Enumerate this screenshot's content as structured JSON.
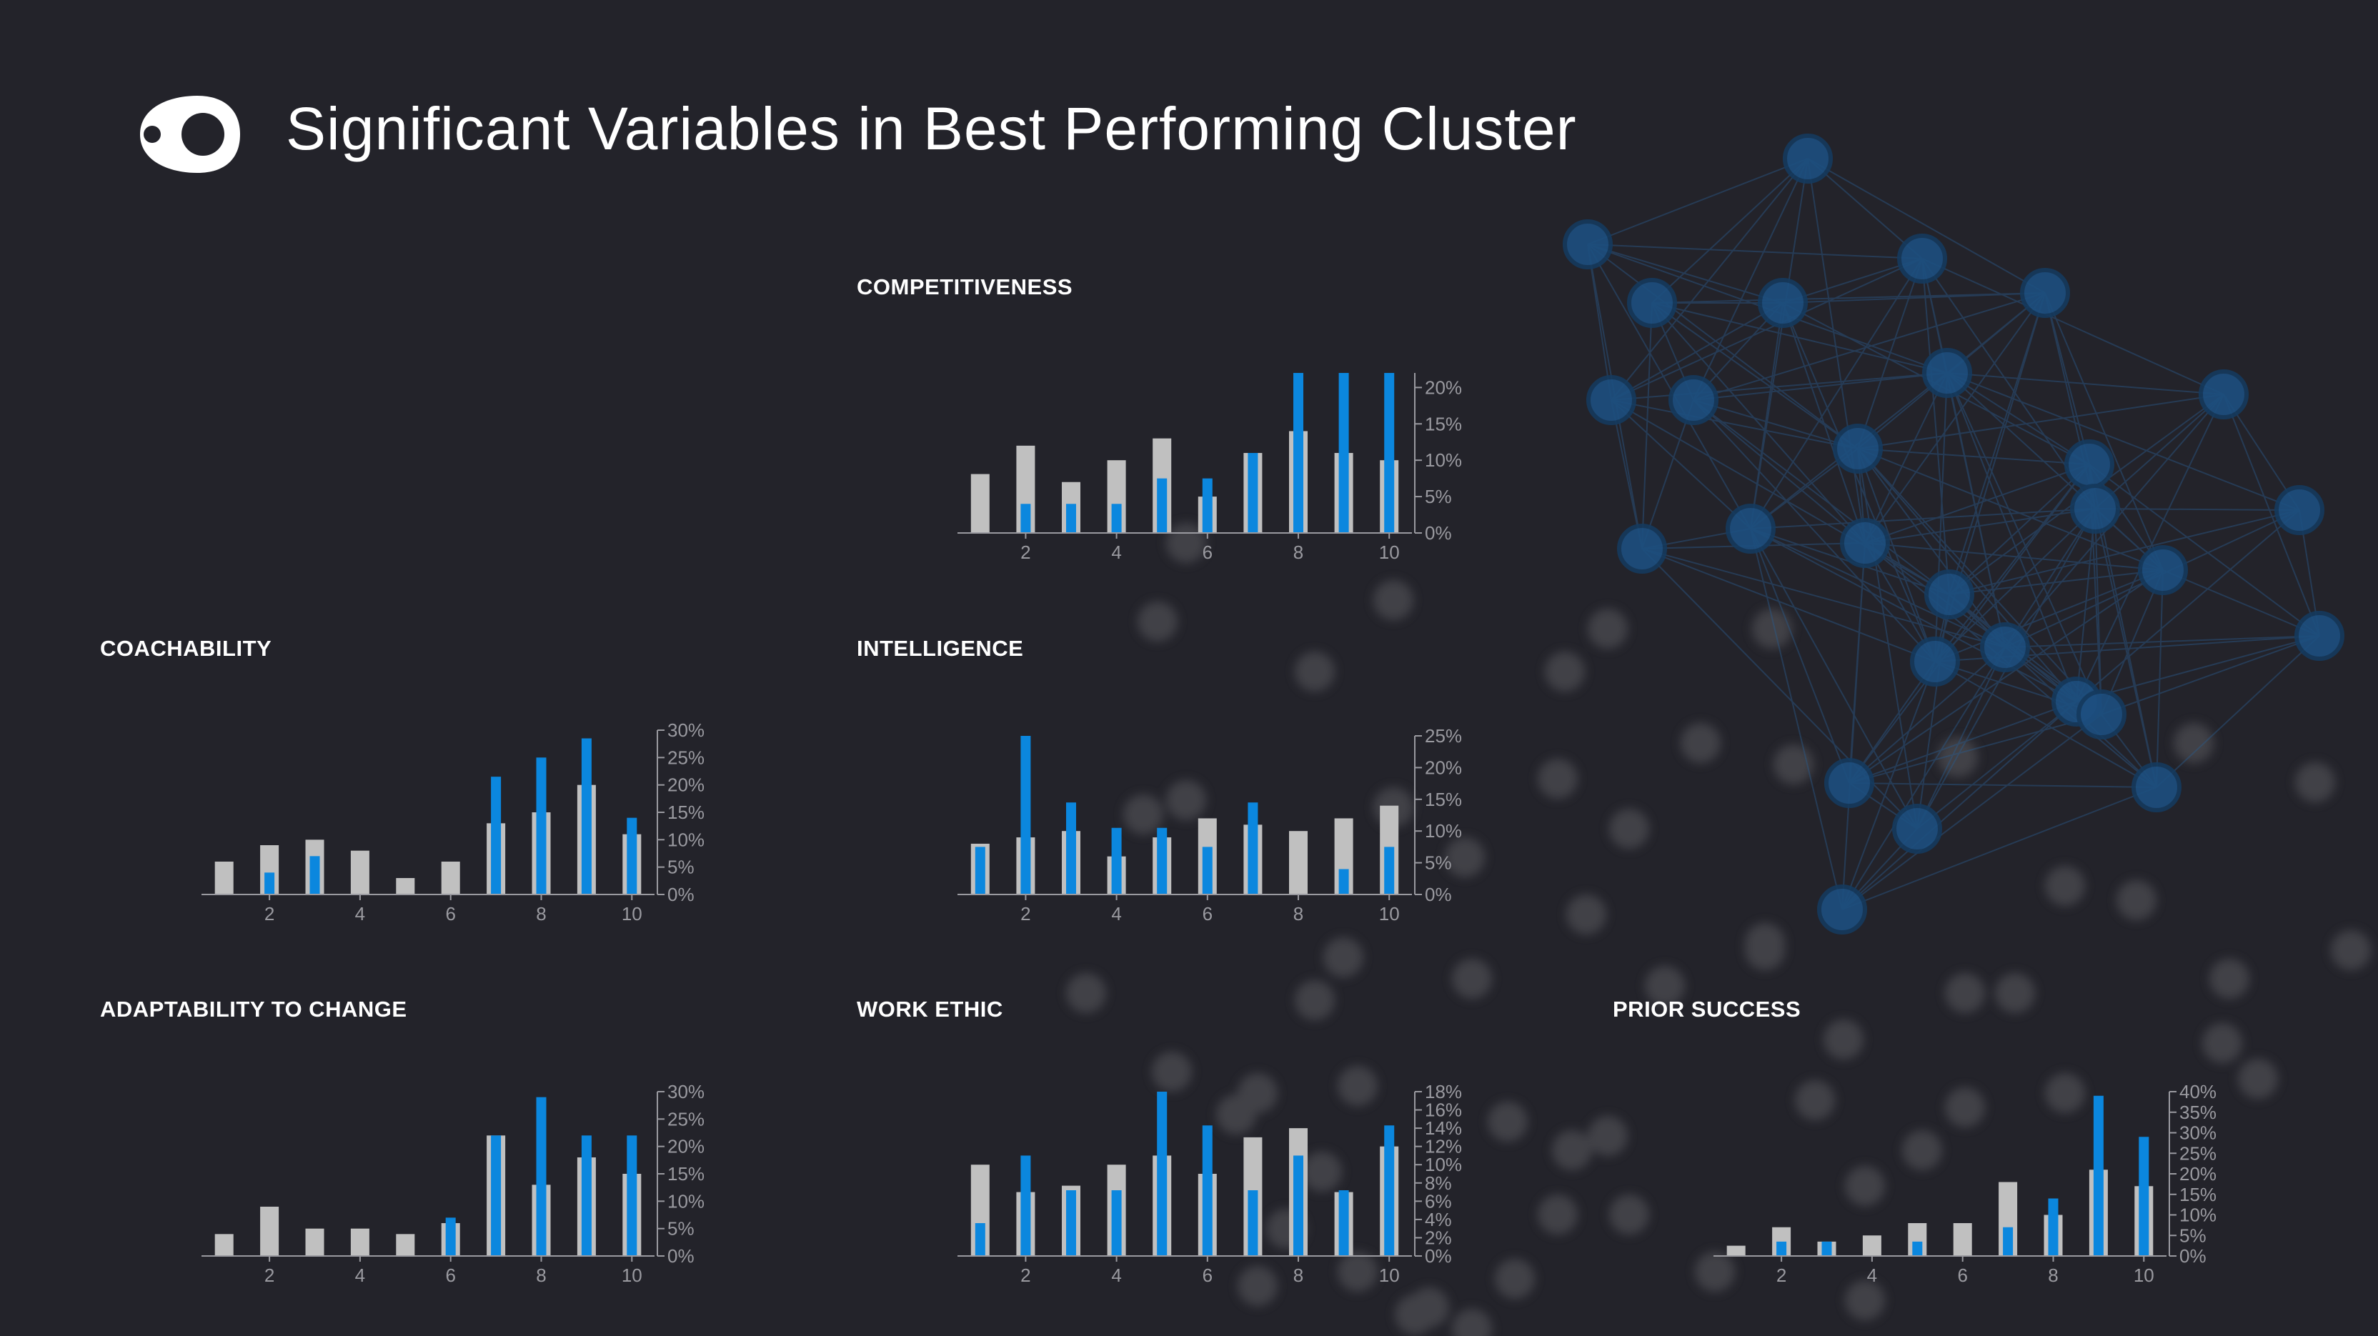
{
  "page": {
    "title": "Significant Variables in Best Performing Cluster"
  },
  "colors": {
    "background": "#23232a",
    "population_bar": "#c0c0c0",
    "cluster_bar": "#0b87de",
    "node_fill": "#1d4f80",
    "node_stroke": "#153a5e",
    "edge": "#2a5a8a",
    "blur_dot": "#5a5a5e"
  },
  "chart_data": [
    {
      "id": "competitiveness",
      "type": "bar",
      "title": "COMPETITIVENESS",
      "categories": [
        1,
        2,
        3,
        4,
        5,
        6,
        7,
        8,
        9,
        10
      ],
      "x_ticks": [
        2,
        4,
        6,
        8,
        10
      ],
      "ylim": [
        0,
        22
      ],
      "y_ticks": [
        0,
        5,
        10,
        15,
        20
      ],
      "y_tick_labels": [
        "0%",
        "5%",
        "10%",
        "15%",
        "20%"
      ],
      "series": [
        {
          "values": [
            8.1,
            12,
            7,
            10,
            13,
            5,
            11,
            14,
            11,
            10
          ]
        },
        {
          "values": [
            0,
            4,
            4,
            4,
            7.5,
            7.5,
            11,
            22,
            22,
            22
          ]
        }
      ]
    },
    {
      "id": "coachability",
      "type": "bar",
      "title": "COACHABILITY",
      "categories": [
        1,
        2,
        3,
        4,
        5,
        6,
        7,
        8,
        9,
        10
      ],
      "x_ticks": [
        2,
        4,
        6,
        8,
        10
      ],
      "ylim": [
        0,
        30
      ],
      "y_ticks": [
        0,
        5,
        10,
        15,
        20,
        25,
        30
      ],
      "y_tick_labels": [
        "0%",
        "5%",
        "10%",
        "15%",
        "20%",
        "25%",
        "30%"
      ],
      "series": [
        {
          "values": [
            6,
            9,
            10,
            8,
            3,
            6,
            13,
            15,
            20,
            11
          ]
        },
        {
          "values": [
            0,
            4,
            7,
            0,
            0,
            0,
            21.5,
            25,
            28.5,
            14
          ]
        }
      ]
    },
    {
      "id": "intelligence",
      "type": "bar",
      "title": "INTELLIGENCE",
      "categories": [
        1,
        2,
        3,
        4,
        5,
        6,
        7,
        8,
        9,
        10
      ],
      "x_ticks": [
        2,
        4,
        6,
        8,
        10
      ],
      "ylim": [
        0,
        25
      ],
      "y_ticks": [
        0,
        5,
        10,
        15,
        20,
        25
      ],
      "y_tick_labels": [
        "0%",
        "5%",
        "10%",
        "15%",
        "20%",
        "25%"
      ],
      "series": [
        {
          "values": [
            8,
            9,
            10,
            6,
            9,
            12,
            11,
            10,
            12,
            14
          ]
        },
        {
          "values": [
            7.5,
            25,
            14.5,
            10.5,
            10.5,
            7.5,
            14.5,
            0,
            4,
            7.5
          ]
        }
      ]
    },
    {
      "id": "adaptability",
      "type": "bar",
      "title": "ADAPTABILITY TO CHANGE",
      "categories": [
        1,
        2,
        3,
        4,
        5,
        6,
        7,
        8,
        9,
        10
      ],
      "x_ticks": [
        2,
        4,
        6,
        8,
        10
      ],
      "ylim": [
        0,
        30
      ],
      "y_ticks": [
        0,
        5,
        10,
        15,
        20,
        25,
        30
      ],
      "y_tick_labels": [
        "0%",
        "5%",
        "10%",
        "15%",
        "20%",
        "25%",
        "30%"
      ],
      "series": [
        {
          "values": [
            4,
            9,
            5,
            5,
            4,
            6,
            22,
            13,
            18,
            15
          ]
        },
        {
          "values": [
            0,
            0,
            0,
            0,
            0,
            7,
            22,
            29,
            22,
            22
          ]
        }
      ]
    },
    {
      "id": "work_ethic",
      "type": "bar",
      "title": "WORK ETHIC",
      "categories": [
        1,
        2,
        3,
        4,
        5,
        6,
        7,
        8,
        9,
        10
      ],
      "x_ticks": [
        2,
        4,
        6,
        8,
        10
      ],
      "ylim": [
        0,
        18
      ],
      "y_ticks": [
        0,
        2,
        4,
        6,
        8,
        10,
        12,
        14,
        16,
        18
      ],
      "y_tick_labels": [
        "0%",
        "2%",
        "4%",
        "6%",
        "8%",
        "10%",
        "12%",
        "14%",
        "16%",
        "18%"
      ],
      "series": [
        {
          "values": [
            10,
            7,
            7.7,
            10,
            11,
            9,
            13,
            14,
            7,
            12
          ]
        },
        {
          "values": [
            3.6,
            11,
            7.2,
            7.2,
            18,
            14.3,
            7.2,
            11,
            7.2,
            14.3
          ]
        }
      ]
    },
    {
      "id": "prior_success",
      "type": "bar",
      "title": "PRIOR SUCCESS",
      "categories": [
        1,
        2,
        3,
        4,
        5,
        6,
        7,
        8,
        9,
        10
      ],
      "x_ticks": [
        2,
        4,
        6,
        8,
        10
      ],
      "ylim": [
        0,
        40
      ],
      "y_ticks": [
        0,
        5,
        10,
        15,
        20,
        25,
        30,
        35,
        40
      ],
      "y_tick_labels": [
        "0%",
        "5%",
        "10%",
        "15%",
        "20%",
        "25%",
        "30%",
        "35%",
        "40%"
      ],
      "series": [
        {
          "values": [
            2.5,
            7,
            3.5,
            5,
            8,
            8,
            18,
            10,
            21,
            17
          ]
        },
        {
          "values": [
            0,
            3.5,
            3.5,
            0,
            3.5,
            0,
            7,
            14,
            39,
            29
          ]
        }
      ]
    }
  ]
}
